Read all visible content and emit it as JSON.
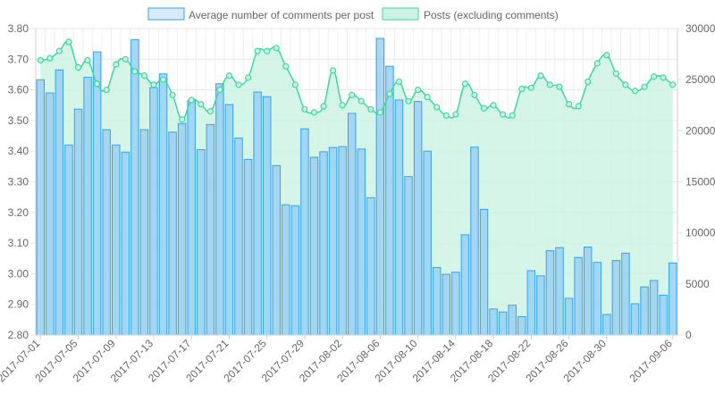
{
  "chart_data": {
    "type": "bar",
    "categories": [
      "2017-07-01",
      "2017-07-02",
      "2017-07-03",
      "2017-07-04",
      "2017-07-05",
      "2017-07-06",
      "2017-07-07",
      "2017-07-08",
      "2017-07-09",
      "2017-07-10",
      "2017-07-11",
      "2017-07-12",
      "2017-07-13",
      "2017-07-14",
      "2017-07-15",
      "2017-07-16",
      "2017-07-17",
      "2017-07-18",
      "2017-07-19",
      "2017-07-20",
      "2017-07-21",
      "2017-07-22",
      "2017-07-23",
      "2017-07-24",
      "2017-07-25",
      "2017-07-26",
      "2017-07-27",
      "2017-07-28",
      "2017-07-29",
      "2017-07-30",
      "2017-07-31",
      "2017-08-01",
      "2017-08-02",
      "2017-08-03",
      "2017-08-04",
      "2017-08-05",
      "2017-08-06",
      "2017-08-07",
      "2017-08-08",
      "2017-08-09",
      "2017-08-10",
      "2017-08-11",
      "2017-08-12",
      "2017-08-13",
      "2017-08-14",
      "2017-08-15",
      "2017-08-16",
      "2017-08-17",
      "2017-08-18",
      "2017-08-19",
      "2017-08-20",
      "2017-08-21",
      "2017-08-22",
      "2017-08-23",
      "2017-08-24",
      "2017-08-25",
      "2017-08-26",
      "2017-08-27",
      "2017-08-28",
      "2017-08-29",
      "2017-08-30",
      "2017-08-31",
      "2017-09-01",
      "2017-09-02",
      "2017-09-03",
      "2017-09-04",
      "2017-09-05",
      "2017-09-06"
    ],
    "x_tick_labels": [
      "2017-07-01",
      "2017-07-05",
      "2017-07-09",
      "2017-07-13",
      "2017-07-17",
      "2017-07-21",
      "2017-07-25",
      "2017-07-29",
      "2017-08-02",
      "2017-08-06",
      "2017-08-10",
      "2017-08-14",
      "2017-08-18",
      "2017-08-22",
      "2017-08-26",
      "2017-08-30",
      "2017-09-06"
    ],
    "series": [
      {
        "name": "Average number of comments per post",
        "chart_type": "bar",
        "axis": "left",
        "color": "#36a2eb",
        "fill": "#9ad0f5",
        "values": [
          3.633,
          3.59,
          3.665,
          3.42,
          3.537,
          3.641,
          3.724,
          3.47,
          3.42,
          3.397,
          3.764,
          3.47,
          3.607,
          3.652,
          3.462,
          3.49,
          3.565,
          3.405,
          3.487,
          3.62,
          3.552,
          3.443,
          3.373,
          3.593,
          3.578,
          3.353,
          3.225,
          3.222,
          3.473,
          3.38,
          3.398,
          3.412,
          3.415,
          3.523,
          3.407,
          3.248,
          3.768,
          3.677,
          3.567,
          3.317,
          3.562,
          3.4,
          3.02,
          2.998,
          3.005,
          3.127,
          3.413,
          3.21,
          2.885,
          2.875,
          2.897,
          2.86,
          3.01,
          2.993,
          3.075,
          3.085,
          2.92,
          3.053,
          3.087,
          3.037,
          2.867,
          3.043,
          3.067,
          2.902,
          2.957,
          2.978,
          2.93,
          3.035
        ]
      },
      {
        "name": "Posts (excluding comments)",
        "chart_type": "area",
        "axis": "right",
        "color": "#3ed8a0",
        "fill": "#cdf3e4",
        "values": [
          26900,
          27100,
          27800,
          28700,
          26200,
          26900,
          24600,
          24000,
          26500,
          27000,
          25800,
          25400,
          24500,
          25000,
          23500,
          21100,
          23000,
          22600,
          21900,
          24000,
          25400,
          24500,
          25200,
          27800,
          27800,
          28100,
          26300,
          24500,
          22100,
          21800,
          22400,
          25900,
          22500,
          23500,
          22900,
          22100,
          21800,
          23600,
          24800,
          22900,
          24000,
          23300,
          22300,
          21500,
          21600,
          24600,
          23500,
          22200,
          22500,
          21600,
          21500,
          24100,
          24200,
          25400,
          24500,
          24300,
          22600,
          22400,
          24800,
          26600,
          27400,
          25600,
          24500,
          23900,
          24300,
          25300,
          25200,
          24500
        ]
      }
    ],
    "y_left": {
      "min": 2.8,
      "max": 3.8,
      "step": 0.1,
      "tick_labels": [
        "2.80",
        "2.90",
        "3.00",
        "3.10",
        "3.20",
        "3.30",
        "3.40",
        "3.50",
        "3.60",
        "3.70",
        "3.80"
      ]
    },
    "y_right": {
      "min": 0,
      "max": 30000,
      "step": 5000,
      "tick_labels": [
        "0",
        "5000",
        "10000",
        "15000",
        "20000",
        "25000",
        "30000"
      ]
    },
    "grid": true,
    "legend": "top-center",
    "title": "",
    "xlabel": "",
    "ylabel": ""
  }
}
